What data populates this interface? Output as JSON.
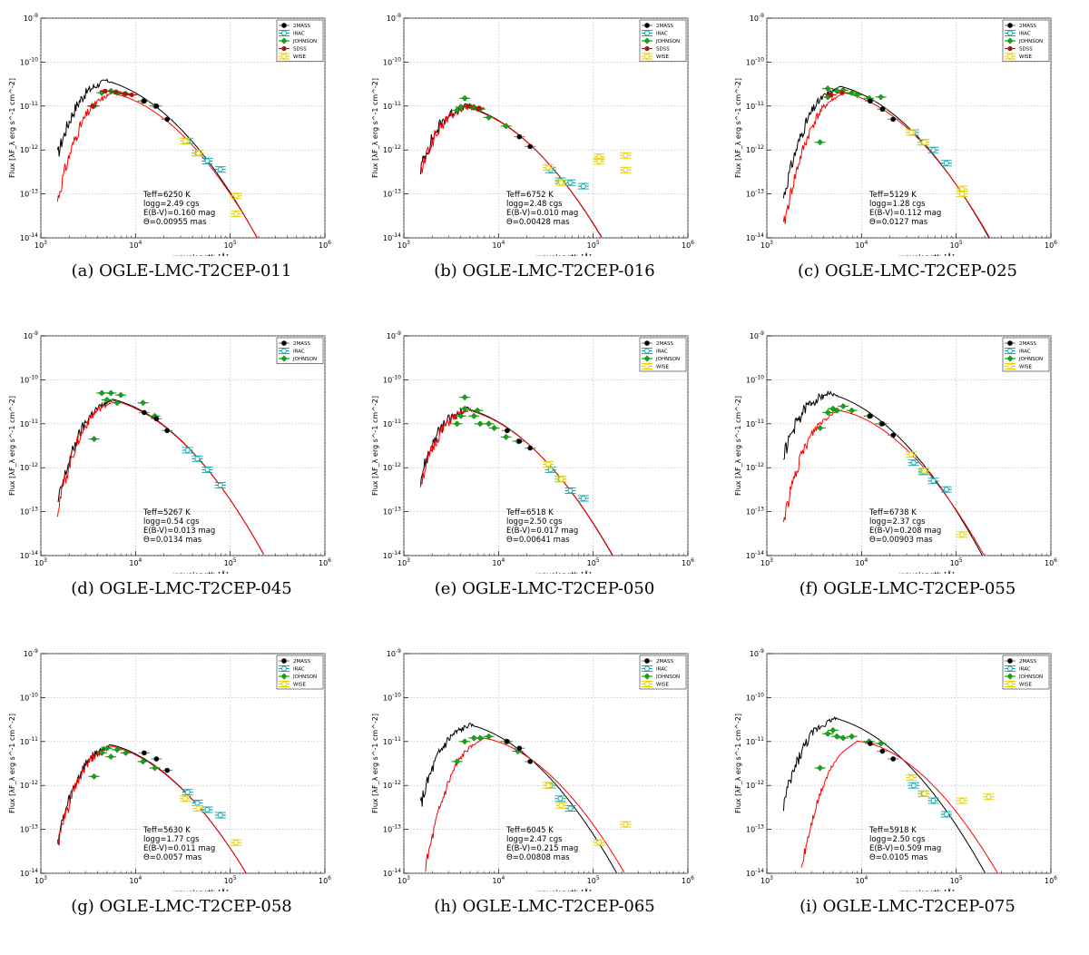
{
  "figure": {
    "xlabel": "wavelength [Å]",
    "ylabel": "Flux [λF_λ erg s^-1 cm^-2]",
    "xlim": [
      1000,
      1000000
    ],
    "ylim": [
      1e-14,
      1e-09
    ],
    "x_tick_labels": [
      "10^3",
      "10^4",
      "10^5",
      "10^6"
    ],
    "y_tick_labels": [
      "10^-14",
      "10^-13",
      "10^-12",
      "10^-11",
      "10^-10",
      "10^-9"
    ],
    "colors": {
      "2MASS": "#000000",
      "IRAC": "#1aa8b0",
      "JOHNSON": "#17a417",
      "SDSS": "#b80f0f",
      "WISE": "#e6d200",
      "model": "#000000",
      "reddened_model": "#ff0000",
      "grid": "#b0b0b0"
    }
  },
  "chart_data": [
    {
      "type": "scatter",
      "label": "(a) OGLE-LMC-T2CEP-011",
      "params": [
        "Teff=6250 K",
        "logg=2.49 cgs",
        "E(B-V)=0.160 mag",
        "Θ=0.00955 mas"
      ],
      "legend": [
        "2MASS",
        "IRAC",
        "JOHNSON",
        "SDSS",
        "WISE"
      ],
      "peak": {
        "x": 4800,
        "y": 3.8e-11
      },
      "reddened_peak": {
        "x": 5500,
        "y": 2.3e-11
      },
      "series": [
        {
          "name": "JOHNSON",
          "x": [
            3650,
            4400,
            5500,
            6400,
            7900,
            12000,
            16000
          ],
          "y": [
            1e-11,
            2e-11,
            2.2e-11,
            2e-11,
            1.9e-11,
            1.3e-11,
            1e-11
          ]
        },
        {
          "name": "SDSS",
          "x": [
            3540,
            4770,
            6230,
            7630,
            9130
          ],
          "y": [
            1e-11,
            2.2e-11,
            2.1e-11,
            1.9e-11,
            1.8e-11
          ]
        },
        {
          "name": "2MASS",
          "x": [
            12350,
            16620,
            21590
          ],
          "y": [
            1.3e-11,
            1e-11,
            5e-12
          ]
        },
        {
          "name": "IRAC",
          "x": [
            35500,
            44930,
            57310,
            78720
          ],
          "y": [
            1.6e-12,
            8.5e-13,
            5.6e-13,
            3.6e-13
          ]
        },
        {
          "name": "WISE",
          "x": [
            33500,
            46000,
            115600,
            115600
          ],
          "y": [
            1.6e-12,
            8.5e-13,
            9e-14,
            3.5e-14
          ]
        }
      ]
    },
    {
      "type": "scatter",
      "label": "(b) OGLE-LMC-T2CEP-016",
      "params": [
        "Teff=6752 K",
        "logg=2.48 cgs",
        "E(B-V)=0.010 mag",
        "Θ=0.00428 mas"
      ],
      "legend": [
        "2MASS",
        "IRAC",
        "JOHNSON",
        "SDSS",
        "WISE"
      ],
      "peak": {
        "x": 4400,
        "y": 1e-11
      },
      "reddened_peak": {
        "x": 4500,
        "y": 9.5e-12
      },
      "series": [
        {
          "name": "JOHNSON",
          "x": [
            3650,
            4000,
            4400,
            5000,
            5500,
            6400,
            7900,
            12000
          ],
          "y": [
            8e-12,
            9.5e-12,
            1.5e-11,
            1e-11,
            9.5e-12,
            8.5e-12,
            5.5e-12,
            3.5e-12
          ]
        },
        {
          "name": "SDSS",
          "x": [
            4770,
            6230
          ],
          "y": [
            1e-11,
            9e-12
          ]
        },
        {
          "name": "2MASS",
          "x": [
            16620,
            21590
          ],
          "y": [
            2e-12,
            1.2e-12
          ]
        },
        {
          "name": "IRAC",
          "x": [
            35500,
            44930,
            57310,
            78720
          ],
          "y": [
            3.5e-13,
            2e-13,
            1.8e-13,
            1.5e-13
          ]
        },
        {
          "name": "WISE",
          "x": [
            33500,
            46000,
            115600,
            115600,
            220000,
            220000
          ],
          "y": [
            4e-13,
            1.8e-13,
            7e-13,
            5.5e-13,
            7.5e-13,
            3.5e-13
          ]
        }
      ]
    },
    {
      "type": "scatter",
      "label": "(c) OGLE-LMC-T2CEP-025",
      "params": [
        "Teff=5129 K",
        "logg=1.28 cgs",
        "E(B-V)=0.112 mag",
        "Θ=0.0127 mas"
      ],
      "legend": [
        "2MASS",
        "IRAC",
        "JOHNSON",
        "SDSS",
        "WISE"
      ],
      "peak": {
        "x": 6000,
        "y": 2.8e-11
      },
      "reddened_peak": {
        "x": 6500,
        "y": 2.2e-11
      },
      "series": [
        {
          "name": "JOHNSON",
          "x": [
            3650,
            4400,
            4400,
            5500,
            6400,
            7900,
            9000,
            12000,
            16000
          ],
          "y": [
            1.5e-12,
            1.6e-11,
            2.5e-11,
            2.2e-11,
            2.3e-11,
            2e-11,
            1.8e-11,
            1.5e-11,
            1.6e-11
          ]
        },
        {
          "name": "SDSS",
          "x": [
            4770,
            6230
          ],
          "y": [
            1.8e-11,
            2e-11
          ]
        },
        {
          "name": "2MASS",
          "x": [
            12350,
            16620,
            21590
          ],
          "y": [
            1.3e-11,
            8.5e-12,
            5e-12
          ]
        },
        {
          "name": "IRAC",
          "x": [
            35500,
            44930,
            57310,
            78720
          ],
          "y": [
            2.5e-12,
            1.5e-12,
            1e-12,
            5e-13
          ]
        },
        {
          "name": "WISE",
          "x": [
            33500,
            46000,
            115600,
            115600
          ],
          "y": [
            2.5e-12,
            1.5e-12,
            1.3e-13,
            1e-13
          ]
        }
      ]
    },
    {
      "type": "scatter",
      "label": "(d) OGLE-LMC-T2CEP-045",
      "params": [
        "Teff=5267 K",
        "logg=0.54 cgs",
        "E(B-V)=0.013 mag",
        "Θ=0.0134 mas"
      ],
      "legend": [
        "2MASS",
        "IRAC",
        "JOHNSON"
      ],
      "peak": {
        "x": 5800,
        "y": 3.6e-11
      },
      "reddened_peak": {
        "x": 5900,
        "y": 3.4e-11
      },
      "series": [
        {
          "name": "JOHNSON",
          "x": [
            3650,
            4400,
            5000,
            5500,
            6400,
            7000,
            12000,
            16000
          ],
          "y": [
            4.5e-12,
            5e-11,
            3.5e-11,
            5e-11,
            3e-11,
            4.5e-11,
            3e-11,
            1.5e-11
          ]
        },
        {
          "name": "2MASS",
          "x": [
            12350,
            16620,
            21590
          ],
          "y": [
            1.8e-11,
            1.3e-11,
            7e-12
          ]
        },
        {
          "name": "IRAC",
          "x": [
            35500,
            44930,
            57310,
            78720
          ],
          "y": [
            2.5e-12,
            1.6e-12,
            9e-13,
            4e-13
          ]
        }
      ]
    },
    {
      "type": "scatter",
      "label": "(e) OGLE-LMC-T2CEP-050",
      "params": [
        "Teff=6518 K",
        "logg=2.50 cgs",
        "E(B-V)=0.017 mag",
        "Θ=0.00641 mas"
      ],
      "legend": [
        "2MASS",
        "IRAC",
        "JOHNSON",
        "WISE"
      ],
      "peak": {
        "x": 4600,
        "y": 2.2e-11
      },
      "reddened_peak": {
        "x": 4700,
        "y": 2.1e-11
      },
      "series": [
        {
          "name": "JOHNSON",
          "x": [
            3650,
            4000,
            4400,
            4400,
            5500,
            6000,
            6400,
            7900,
            9000,
            12000,
            16000
          ],
          "y": [
            1e-11,
            1.5e-11,
            4e-11,
            2.2e-11,
            1.5e-11,
            2e-11,
            1e-11,
            1e-11,
            8e-12,
            5e-12,
            4e-12
          ]
        },
        {
          "name": "2MASS",
          "x": [
            12350,
            16620,
            21590
          ],
          "y": [
            7e-12,
            4e-12,
            2.8e-12
          ]
        },
        {
          "name": "IRAC",
          "x": [
            35500,
            44930,
            57310,
            78720
          ],
          "y": [
            9e-13,
            5.5e-13,
            3e-13,
            2e-13
          ]
        },
        {
          "name": "WISE",
          "x": [
            33500,
            46000
          ],
          "y": [
            1.2e-12,
            5.5e-13
          ]
        }
      ]
    },
    {
      "type": "scatter",
      "label": "(f) OGLE-LMC-T2CEP-055",
      "params": [
        "Teff=6738 K",
        "logg=2.37 cgs",
        "E(B-V)=0.208 mag",
        "Θ=0.00903 mas"
      ],
      "legend": [
        "2MASS",
        "IRAC",
        "JOHNSON",
        "WISE"
      ],
      "peak": {
        "x": 4400,
        "y": 5e-11
      },
      "reddened_peak": {
        "x": 5500,
        "y": 2.5e-11
      },
      "series": [
        {
          "name": "JOHNSON",
          "x": [
            3650,
            4400,
            5000,
            5500,
            6400,
            7900,
            12000,
            16000
          ],
          "y": [
            8e-12,
            1.8e-11,
            2.2e-11,
            2e-11,
            2.5e-11,
            2e-11,
            1.5e-11,
            1e-11
          ]
        },
        {
          "name": "2MASS",
          "x": [
            12350,
            16620,
            21590
          ],
          "y": [
            1.5e-11,
            1e-11,
            5.5e-12
          ]
        },
        {
          "name": "IRAC",
          "x": [
            35500,
            44930,
            57310,
            78720
          ],
          "y": [
            1.3e-12,
            8e-13,
            5e-13,
            3.2e-13
          ]
        },
        {
          "name": "WISE",
          "x": [
            33500,
            46000,
            115600
          ],
          "y": [
            2e-12,
            8.5e-13,
            3e-14
          ]
        }
      ]
    },
    {
      "type": "scatter",
      "label": "(g) OGLE-LMC-T2CEP-058",
      "params": [
        "Teff=5630 K",
        "logg=1.77 cgs",
        "E(B-V)=0.011 mag",
        "Θ=0.0057 mas"
      ],
      "legend": [
        "2MASS",
        "IRAC",
        "JOHNSON",
        "WISE"
      ],
      "peak": {
        "x": 5500,
        "y": 8.5e-12
      },
      "reddened_peak": {
        "x": 5600,
        "y": 8e-12
      },
      "series": [
        {
          "name": "JOHNSON",
          "x": [
            3650,
            4400,
            5000,
            5500,
            6400,
            7900,
            12000,
            16000
          ],
          "y": [
            1.6e-12,
            5.5e-12,
            7e-12,
            4.5e-12,
            6.5e-12,
            5.5e-12,
            3.5e-12,
            2.5e-12
          ]
        },
        {
          "name": "2MASS",
          "x": [
            12350,
            16620,
            21590
          ],
          "y": [
            5.5e-12,
            4e-12,
            2.2e-12
          ]
        },
        {
          "name": "IRAC",
          "x": [
            35500,
            44930,
            57310,
            78720
          ],
          "y": [
            7e-13,
            4e-13,
            2.8e-13,
            2.1e-13
          ]
        },
        {
          "name": "WISE",
          "x": [
            33500,
            46000,
            115600
          ],
          "y": [
            5e-13,
            3e-13,
            5e-14
          ]
        }
      ]
    },
    {
      "type": "scatter",
      "label": "(h) OGLE-LMC-T2CEP-065",
      "params": [
        "Teff=6045 K",
        "logg=2.47 cgs",
        "E(B-V)=0.215 mag",
        "Θ=0.00808 mas"
      ],
      "legend": [
        "2MASS",
        "IRAC",
        "JOHNSON",
        "WISE"
      ],
      "peak": {
        "x": 5000,
        "y": 2.4e-11
      },
      "reddened_peak": {
        "x": 7000,
        "y": 1.4e-11
      },
      "series": [
        {
          "name": "JOHNSON",
          "x": [
            3650,
            4400,
            5500,
            6400,
            7900,
            12000,
            16000
          ],
          "y": [
            3.5e-12,
            1e-11,
            1.2e-11,
            1.2e-11,
            1.3e-11,
            1e-11,
            6e-12
          ]
        },
        {
          "name": "2MASS",
          "x": [
            12350,
            16620,
            21590
          ],
          "y": [
            1e-11,
            7e-12,
            3.5e-12
          ]
        },
        {
          "name": "IRAC",
          "x": [
            35500,
            44930,
            57310
          ],
          "y": [
            1e-12,
            5e-13,
            3e-13
          ]
        },
        {
          "name": "WISE",
          "x": [
            33500,
            46000,
            115600,
            220000
          ],
          "y": [
            1e-12,
            3.5e-13,
            5e-14,
            1.3e-13
          ]
        }
      ]
    },
    {
      "type": "scatter",
      "label": "(i) OGLE-LMC-T2CEP-075",
      "params": [
        "Teff=5918 K",
        "logg=2.50 cgs",
        "E(B-V)=0.509 mag",
        "Θ=0.0105 mas"
      ],
      "legend": [
        "2MASS",
        "IRAC",
        "JOHNSON",
        "WISE"
      ],
      "peak": {
        "x": 5200,
        "y": 3.4e-11
      },
      "reddened_peak": {
        "x": 9000,
        "y": 1.35e-11
      },
      "series": [
        {
          "name": "JOHNSON",
          "x": [
            3650,
            4400,
            5000,
            5500,
            6400,
            7900,
            12000,
            16000
          ],
          "y": [
            2.5e-12,
            1.5e-11,
            1.8e-11,
            1.3e-11,
            1.2e-11,
            1.3e-11,
            1e-11,
            9e-12
          ]
        },
        {
          "name": "2MASS",
          "x": [
            12350,
            16620,
            21590
          ],
          "y": [
            9e-12,
            6e-12,
            4e-12
          ]
        },
        {
          "name": "IRAC",
          "x": [
            35500,
            44930,
            57310,
            78720
          ],
          "y": [
            1e-12,
            6.5e-13,
            4.5e-13,
            2.2e-13
          ]
        },
        {
          "name": "WISE",
          "x": [
            33500,
            46000,
            115600,
            220000
          ],
          "y": [
            1.5e-12,
            6.5e-13,
            4.5e-13,
            5.5e-13
          ]
        }
      ]
    }
  ]
}
